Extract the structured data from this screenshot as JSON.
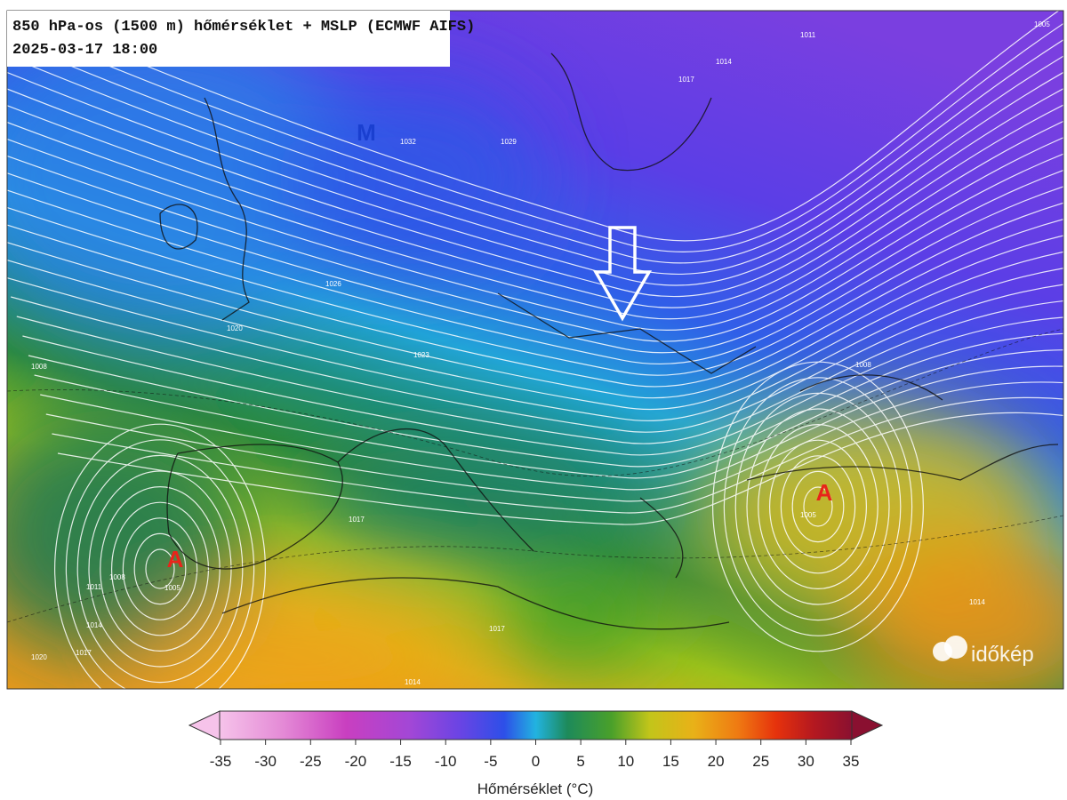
{
  "header": {
    "title": "850 hPa-os (1500 m) hőmérséklet + MSLP (ECMWF AIFS)",
    "datetime": "2025-03-17 18:00"
  },
  "map": {
    "pressure_centers": [
      "M",
      "A",
      "A"
    ],
    "isobar_labels": [
      "1011",
      "1005",
      "1014",
      "1017",
      "1029",
      "1032",
      "1026",
      "1020",
      "1023",
      "1008",
      "1008",
      "1017",
      "1005",
      "1005",
      "1008",
      "1011",
      "1014",
      "1017",
      "1020",
      "1017",
      "1014",
      "1014"
    ],
    "logo": "időkép"
  },
  "colorbar": {
    "ticks": [
      -35,
      -30,
      -25,
      -20,
      -15,
      -10,
      -5,
      0,
      5,
      10,
      15,
      20,
      25,
      30,
      35
    ],
    "label": "Hőmérséklet (°C)"
  }
}
